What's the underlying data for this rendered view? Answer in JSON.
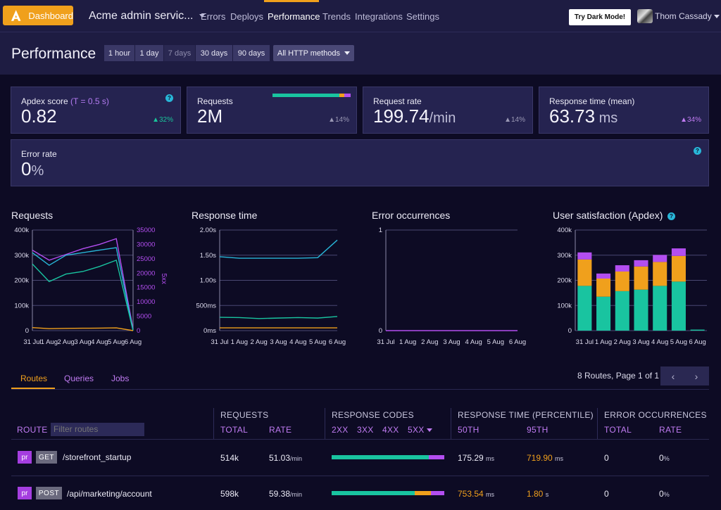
{
  "topbar": {
    "dashboard_label": "Dashboard",
    "app_name": "Acme admin servic...",
    "nav": [
      "Errors",
      "Deploys",
      "Performance",
      "Trends",
      "Integrations",
      "Settings"
    ],
    "active_nav": "Performance",
    "dark_mode_label": "Try Dark Mode!",
    "user_name": "Thom Cassady"
  },
  "page": {
    "title": "Performance",
    "ranges": [
      "1 hour",
      "1 day",
      "7 days",
      "30 days",
      "90 days"
    ],
    "selected_range": "7 days",
    "methods_label": "All HTTP methods"
  },
  "cards": {
    "apdex": {
      "label": "Apdex score",
      "t_label": "(T = 0.5 s)",
      "value": "0.82",
      "delta": "32%",
      "delta_color": "#19c49a"
    },
    "requests": {
      "label": "Requests",
      "value": "2M",
      "delta": "14%",
      "delta_color": "#9a98b4"
    },
    "rate": {
      "label": "Request rate",
      "value": "199.74",
      "unit": "/min",
      "delta": "14%",
      "delta_color": "#9a98b4"
    },
    "response": {
      "label": "Response time (mean)",
      "value": "63.73",
      "unit": " ms",
      "delta": "34%",
      "delta_color": "#c07bf2"
    },
    "error": {
      "label": "Error rate",
      "value": "0",
      "unit": "%"
    }
  },
  "colors": {
    "teal": "#19c4a0",
    "orange": "#f0a01c",
    "purple": "#b34ef0",
    "cyan": "#28b6d8",
    "bg": "#0d0b24"
  },
  "chart_data": [
    {
      "type": "line",
      "title": "Requests",
      "x": [
        "31 Jul",
        "1 Aug",
        "2 Aug",
        "3 Aug",
        "4 Aug",
        "5 Aug",
        "6 Aug"
      ],
      "y_ticks": [
        "0",
        "100k",
        "200k",
        "300k",
        "400k"
      ],
      "y2_ticks": [
        "0",
        "5000",
        "10000",
        "15000",
        "20000",
        "25000",
        "30000",
        "35000"
      ],
      "y2label": "5xx",
      "ylim": [
        0,
        400000
      ],
      "y2lim": [
        0,
        35000
      ],
      "series": [
        {
          "color": "#b34ef0",
          "axis": "y2",
          "values": [
            28000,
            24500,
            26500,
            28500,
            30000,
            32000,
            500
          ]
        },
        {
          "color": "#28b6d8",
          "axis": "y",
          "values": [
            310000,
            260000,
            300000,
            310000,
            320000,
            330000,
            0
          ]
        },
        {
          "color": "#19c4a0",
          "axis": "y",
          "values": [
            265000,
            195000,
            225000,
            235000,
            255000,
            280000,
            0
          ]
        },
        {
          "color": "#f0a01c",
          "axis": "y",
          "values": [
            12000,
            8000,
            9000,
            9500,
            10000,
            11000,
            0
          ]
        }
      ]
    },
    {
      "type": "line",
      "title": "Response time",
      "x": [
        "31 Jul",
        "1 Aug",
        "2 Aug",
        "3 Aug",
        "4 Aug",
        "5 Aug",
        "6 Aug"
      ],
      "y_ticks": [
        "0ms",
        "500ms",
        "1.00s",
        "1.50s",
        "2.00s"
      ],
      "ylim": [
        0,
        2000
      ],
      "series": [
        {
          "color": "#28b6d8",
          "values": [
            1470,
            1440,
            1440,
            1440,
            1440,
            1450,
            1800
          ]
        },
        {
          "color": "#19c4a0",
          "values": [
            265,
            260,
            240,
            250,
            260,
            250,
            280
          ]
        },
        {
          "color": "#f0a01c",
          "values": [
            55,
            55,
            55,
            55,
            55,
            55,
            55
          ]
        }
      ]
    },
    {
      "type": "line",
      "title": "Error occurrences",
      "x": [
        "31 Jul",
        "1 Aug",
        "2 Aug",
        "3 Aug",
        "4 Aug",
        "5 Aug",
        "6 Aug"
      ],
      "y_ticks": [
        "0",
        "1"
      ],
      "ylim": [
        0,
        1
      ],
      "series": [
        {
          "color": "#b34ef0",
          "values": [
            0,
            0,
            0,
            0,
            0,
            0,
            0
          ]
        }
      ]
    },
    {
      "type": "bar",
      "title": "User satisfaction (Apdex)",
      "categories": [
        "31 Jul",
        "1 Aug",
        "2 Aug",
        "3 Aug",
        "4 Aug",
        "5 Aug",
        "6 Aug"
      ],
      "y_ticks": [
        "0",
        "100k",
        "200k",
        "300k",
        "400k"
      ],
      "ylim": [
        0,
        400000
      ],
      "series": [
        {
          "color": "#19c4a0",
          "values": [
            178000,
            135000,
            157000,
            163000,
            178000,
            195000,
            4000
          ]
        },
        {
          "color": "#f0a01c",
          "values": [
            105000,
            72000,
            78000,
            92000,
            95000,
            102000,
            0
          ]
        },
        {
          "color": "#b34ef0",
          "values": [
            28000,
            20000,
            25000,
            25000,
            28000,
            30000,
            0
          ]
        }
      ]
    }
  ],
  "tabs": [
    "Routes",
    "Queries",
    "Jobs"
  ],
  "active_tab": "Routes",
  "pager": {
    "text": "8 Routes, Page 1 of 1",
    "prev": "‹",
    "next": "›"
  },
  "table": {
    "requests_header": "REQUESTS",
    "codes_header": "RESPONSE CODES",
    "resp_header": "RESPONSE TIME (PERCENTILE)",
    "errors_header": "ERROR OCCURRENCES",
    "route_label": "ROUTE",
    "filter_placeholder": "Filter routes",
    "total": "TOTAL",
    "rate": "RATE",
    "codes": [
      "2XX",
      "3XX",
      "4XX",
      "5XX"
    ],
    "p50": "50TH",
    "p95": "95TH",
    "err_total": "TOTAL",
    "err_rate": "RATE",
    "rows": [
      {
        "tag": "pr",
        "method": "GET",
        "route": "/storefront_startup",
        "total": "514k",
        "rate": "51.03",
        "rate_unit": "/min",
        "codes_mix": [
          0.86,
          0.0,
          0.0,
          0.14
        ],
        "p50": "175.29",
        "p50_unit": "ms",
        "p50_color": "#ecebf6",
        "p95": "719.90",
        "p95_unit": "ms",
        "p95_color": "#f0a01c",
        "err_total": "0",
        "err_rate": "0",
        "err_rate_unit": "%"
      },
      {
        "tag": "pr",
        "method": "POST",
        "route": "/api/marketing/account",
        "total": "598k",
        "rate": "59.38",
        "rate_unit": "/min",
        "codes_mix": [
          0.74,
          0.0,
          0.14,
          0.12
        ],
        "p50": "753.54",
        "p50_unit": "ms",
        "p50_color": "#f0a01c",
        "p95": "1.80",
        "p95_unit": "s",
        "p95_color": "#f0a01c",
        "err_total": "0",
        "err_rate": "0",
        "err_rate_unit": "%"
      }
    ]
  }
}
